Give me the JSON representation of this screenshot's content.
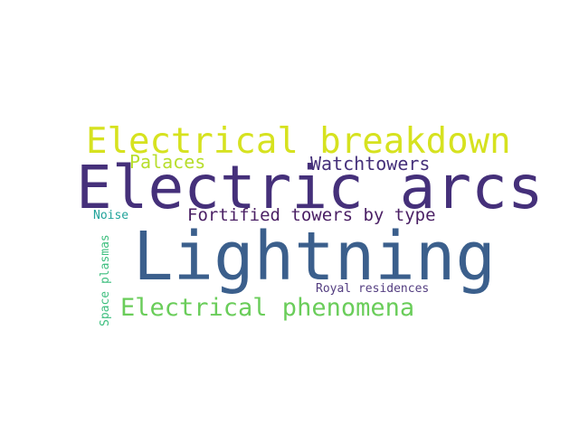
{
  "words": {
    "lightning": {
      "text": "Lightning",
      "color": "#3b5f8c"
    },
    "electric_arcs": {
      "text": "Electric arcs",
      "color": "#45307a"
    },
    "electrical_breakdown": {
      "text": "Electrical breakdown",
      "color": "#d6e21f"
    },
    "electrical_phenomena": {
      "text": "Electrical phenomena",
      "color": "#6acd5a"
    },
    "fortified_towers": {
      "text": "Fortified towers by type",
      "color": "#4a1f64"
    },
    "watchtowers": {
      "text": "Watchtowers",
      "color": "#45307a"
    },
    "palaces": {
      "text": "Palaces",
      "color": "#b7de2c"
    },
    "royal_residences": {
      "text": "Royal residences",
      "color": "#533d80"
    },
    "noise": {
      "text": "Noise",
      "color": "#21a39a"
    },
    "space_plasmas": {
      "text": "Space plasmas",
      "color": "#3fbf7f"
    }
  }
}
